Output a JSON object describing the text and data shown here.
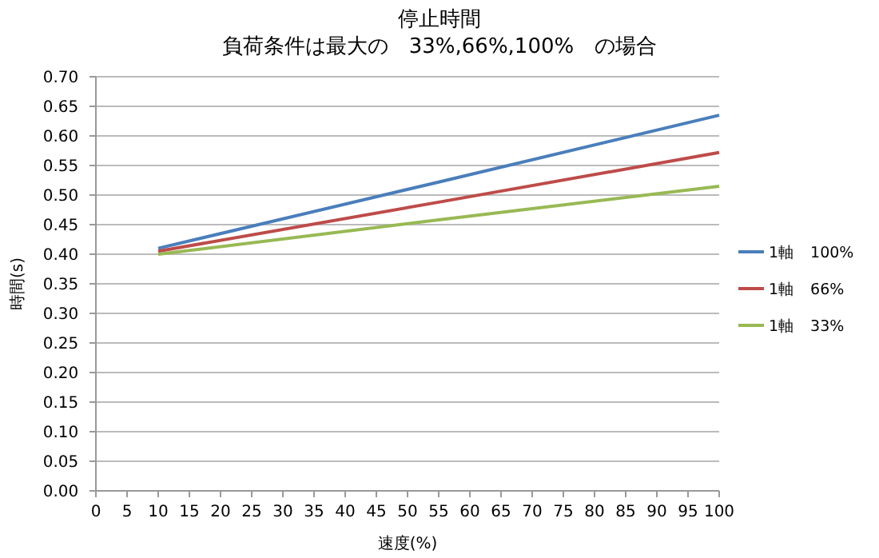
{
  "chart_data": {
    "type": "line",
    "title": "停止時間",
    "subtitle": "負荷条件は最大の　33%,66%,100%　の場合",
    "xlabel": "速度(%)",
    "ylabel": "時間(s)",
    "x": [
      10,
      55,
      100
    ],
    "series": [
      {
        "name": "1軸　100%",
        "color": "#4a7ebb",
        "values": [
          0.41,
          0.522,
          0.635
        ]
      },
      {
        "name": "1軸　66%",
        "color": "#be4b48",
        "values": [
          0.405,
          0.488,
          0.572
        ]
      },
      {
        "name": "1軸　33%",
        "color": "#98b954",
        "values": [
          0.4,
          0.458,
          0.515
        ]
      }
    ],
    "xlim": [
      0,
      100
    ],
    "xticks": [
      0,
      5,
      10,
      15,
      20,
      25,
      30,
      35,
      40,
      45,
      50,
      55,
      60,
      65,
      70,
      75,
      80,
      85,
      90,
      95,
      100
    ],
    "ylim": [
      0,
      0.7
    ],
    "yticks": [
      {
        "value": 0,
        "label": "0.00"
      },
      {
        "value": 0.05,
        "label": "0.05"
      },
      {
        "value": 0.1,
        "label": "0.10"
      },
      {
        "value": 0.15,
        "label": "0.15"
      },
      {
        "value": 0.2,
        "label": "0.20"
      },
      {
        "value": 0.25,
        "label": "0.25"
      },
      {
        "value": 0.3,
        "label": "0.30"
      },
      {
        "value": 0.35,
        "label": "0.35"
      },
      {
        "value": 0.4,
        "label": "0.40"
      },
      {
        "value": 0.45,
        "label": "0.45"
      },
      {
        "value": 0.5,
        "label": "0.50"
      },
      {
        "value": 0.55,
        "label": "0.55"
      },
      {
        "value": 0.6,
        "label": "0.60"
      },
      {
        "value": 0.65,
        "label": "0.65"
      },
      {
        "value": 0.7,
        "label": "0.70"
      }
    ],
    "grid": "y",
    "legend": "right",
    "marker": "none",
    "line_style": "solid"
  }
}
